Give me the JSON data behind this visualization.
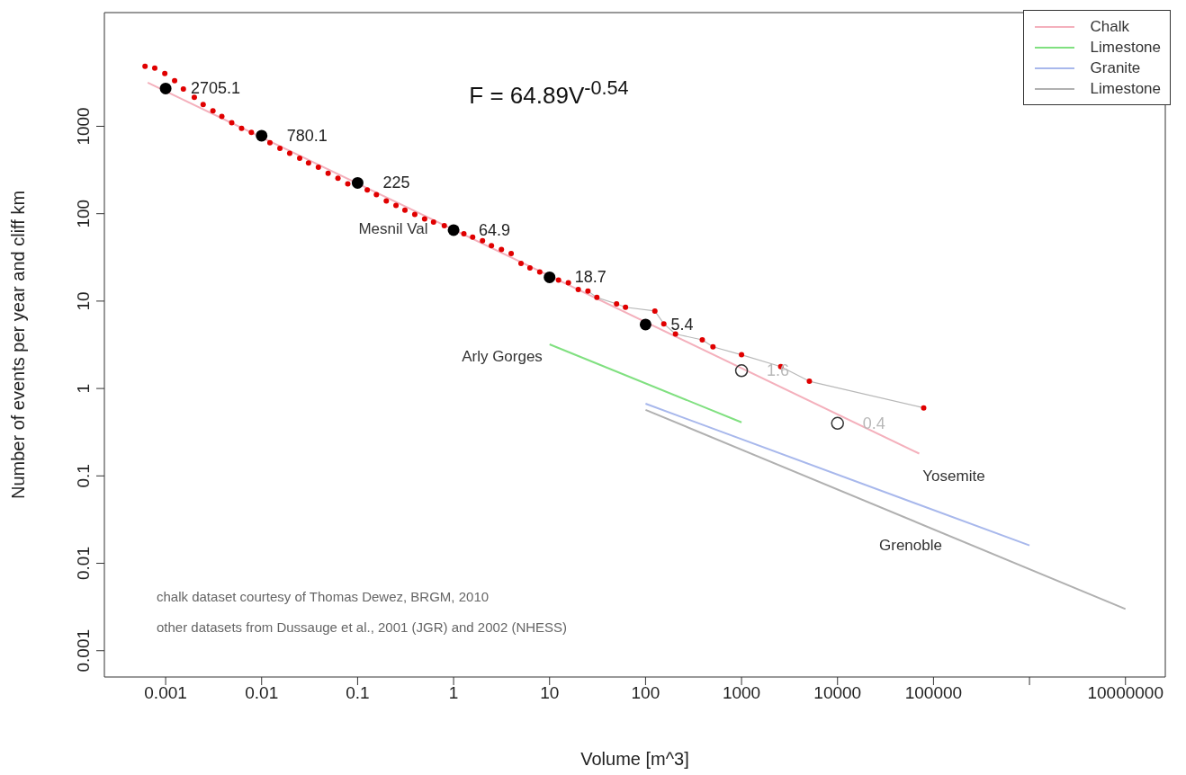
{
  "chart_data": {
    "type": "line",
    "xlabel": "Volume [m^3]",
    "ylabel": "Number of events per year and cliff km",
    "log": "xy",
    "grid": false,
    "legend": "top right",
    "xlim": [
      0.00023,
      26000000
    ],
    "xticks": [
      0.001,
      0.01,
      0.1,
      1,
      10,
      100,
      1000,
      10000,
      100000,
      {
        "value": 1000000,
        "label": null
      },
      10000000
    ],
    "ylim": [
      0.0005,
      20000
    ],
    "yticks": [
      0.001,
      0.01,
      0.1,
      1,
      10,
      100,
      1000
    ],
    "series": [
      {
        "name": "Chalk",
        "color": "#f4b0bc",
        "x": [
          0.00065,
          71000
        ],
        "values": [
          3160,
          0.18
        ]
      },
      {
        "name": "Limestone",
        "color": "#80e080",
        "x": [
          10,
          1000
        ],
        "values": [
          3.2,
          0.41
        ]
      },
      {
        "name": "Granite",
        "color": "#a8b8ec",
        "x": [
          100,
          1000000
        ],
        "values": [
          0.67,
          0.016
        ]
      },
      {
        "name": "Limestone",
        "color": "#b0b0b0",
        "x": [
          100,
          10000000
        ],
        "values": [
          0.57,
          0.003
        ]
      },
      {
        "color": "#b8b8b8",
        "x": [
          25.1,
          31.1,
          49.9,
          61.8,
          125,
          155,
          205,
          390,
          504,
          1000,
          2560,
          5090,
          79000
        ],
        "values": [
          13,
          11,
          9.3,
          8.5,
          7.7,
          5.5,
          4.2,
          3.6,
          3.0,
          2.43,
          1.78,
          1.21,
          0.6
        ]
      },
      {
        "type": "scatter",
        "color": "#e00000",
        "x": [
          0.00061,
          0.00077,
          0.00098,
          0.00124,
          0.00153,
          0.00199,
          0.00246,
          0.00311,
          0.00385,
          0.00488,
          0.00618,
          0.00782,
          0.0122,
          0.0155,
          0.0196,
          0.0249,
          0.0308,
          0.039,
          0.0493,
          0.0624,
          0.079,
          0.126,
          0.157,
          0.199,
          0.251,
          0.311,
          0.394,
          0.499,
          0.618,
          0.8,
          1.28,
          1.58,
          2.0,
          2.48,
          3.15,
          3.98,
          5.04,
          6.24,
          7.9,
          12.4,
          15.7,
          19.9,
          25.1,
          31.1,
          49.9,
          61.8,
          125,
          155,
          205,
          390,
          504,
          1000,
          2560,
          5090,
          79000
        ],
        "values": [
          4870,
          4640,
          4020,
          3320,
          2670,
          2150,
          1780,
          1500,
          1300,
          1100,
          950,
          850,
          650,
          560,
          490,
          430,
          380,
          340,
          290,
          255,
          220,
          187,
          165,
          140,
          124,
          110,
          98,
          87,
          80,
          73,
          59,
          54,
          49,
          43,
          39,
          35,
          27,
          24,
          21.5,
          17.4,
          16.2,
          13.6,
          13,
          11,
          9.3,
          8.5,
          7.7,
          5.5,
          4.2,
          3.6,
          3.0,
          2.43,
          1.78,
          1.21,
          0.6
        ]
      },
      {
        "type": "scatter",
        "color": "#000000",
        "x": [
          0.001,
          0.01,
          0.1,
          1,
          10,
          100
        ],
        "values": [
          2705.1,
          780.1,
          225,
          64.9,
          18.7,
          5.4
        ],
        "value_labels": [
          "2705.1",
          "780.1",
          "225",
          "64.9",
          "18.7",
          "5.4"
        ]
      },
      {
        "type": "scatter",
        "color": "#333333",
        "x": [
          1000,
          10000
        ],
        "values": [
          1.6,
          0.4
        ],
        "value_labels": [
          "1.6",
          "0.4"
        ]
      }
    ],
    "annotations": [
      "F = 64.89V$^{-0.54}$",
      "Mesnil Val",
      "Arly Gorges",
      "Yosemite",
      "Grenoble",
      "chalk dataset courtesy of Thomas Dewez, BRGM, 2010",
      "other datasets from Dussauge et al., 2001 (JGR) and 2002 (NHESS)"
    ]
  }
}
